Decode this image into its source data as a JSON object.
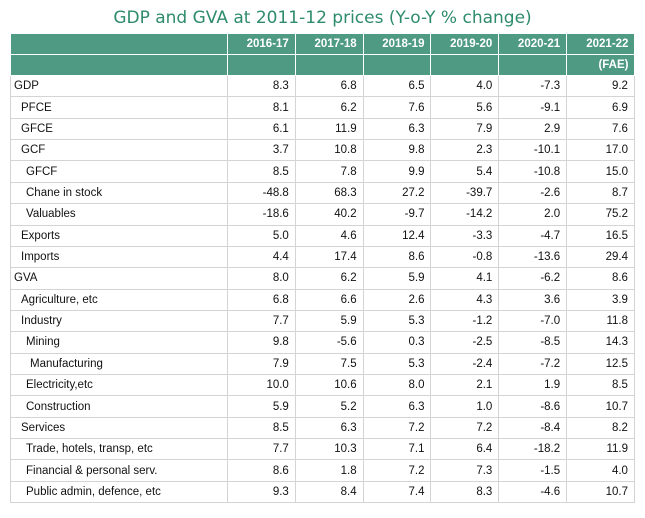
{
  "title": "GDP and GVA at 2011-12 prices (Y-o-Y % change)",
  "columns": [
    "2016-17",
    "2017-18",
    "2018-19",
    "2019-20",
    "2020-21",
    "2021-22"
  ],
  "subheader": [
    "",
    "",
    "",
    "",
    "",
    "(FAE)"
  ],
  "rows": [
    {
      "label": "GDP",
      "indent": 0,
      "values": [
        "8.3",
        "6.8",
        "6.5",
        "4.0",
        "-7.3",
        "9.2"
      ]
    },
    {
      "label": "PFCE",
      "indent": 1,
      "values": [
        "8.1",
        "6.2",
        "7.6",
        "5.6",
        "-9.1",
        "6.9"
      ]
    },
    {
      "label": "GFCE",
      "indent": 1,
      "values": [
        "6.1",
        "11.9",
        "6.3",
        "7.9",
        "2.9",
        "7.6"
      ]
    },
    {
      "label": "GCF",
      "indent": 1,
      "values": [
        "3.7",
        "10.8",
        "9.8",
        "2.3",
        "-10.1",
        "17.0"
      ]
    },
    {
      "label": "GFCF",
      "indent": 2,
      "values": [
        "8.5",
        "7.8",
        "9.9",
        "5.4",
        "-10.8",
        "15.0"
      ]
    },
    {
      "label": "Chane in stock",
      "indent": 2,
      "values": [
        "-48.8",
        "68.3",
        "27.2",
        "-39.7",
        "-2.6",
        "8.7"
      ]
    },
    {
      "label": "Valuables",
      "indent": 2,
      "values": [
        "-18.6",
        "40.2",
        "-9.7",
        "-14.2",
        "2.0",
        "75.2"
      ]
    },
    {
      "label": "Exports",
      "indent": 1,
      "values": [
        "5.0",
        "4.6",
        "12.4",
        "-3.3",
        "-4.7",
        "16.5"
      ]
    },
    {
      "label": "Imports",
      "indent": 1,
      "values": [
        "4.4",
        "17.4",
        "8.6",
        "-0.8",
        "-13.6",
        "29.4"
      ]
    },
    {
      "label": "GVA",
      "indent": 0,
      "values": [
        "8.0",
        "6.2",
        "5.9",
        "4.1",
        "-6.2",
        "8.6"
      ]
    },
    {
      "label": "Agriculture, etc",
      "indent": 1,
      "values": [
        "6.8",
        "6.6",
        "2.6",
        "4.3",
        "3.6",
        "3.9"
      ]
    },
    {
      "label": "Industry",
      "indent": 1,
      "values": [
        "7.7",
        "5.9",
        "5.3",
        "-1.2",
        "-7.0",
        "11.8"
      ]
    },
    {
      "label": "Mining",
      "indent": 2,
      "values": [
        "9.8",
        "-5.6",
        "0.3",
        "-2.5",
        "-8.5",
        "14.3"
      ]
    },
    {
      "label": "Manufacturing",
      "indent": 3,
      "values": [
        "7.9",
        "7.5",
        "5.3",
        "-2.4",
        "-7.2",
        "12.5"
      ]
    },
    {
      "label": "Electricity,etc",
      "indent": 2,
      "values": [
        "10.0",
        "10.6",
        "8.0",
        "2.1",
        "1.9",
        "8.5"
      ]
    },
    {
      "label": "Construction",
      "indent": 2,
      "values": [
        "5.9",
        "5.2",
        "6.3",
        "1.0",
        "-8.6",
        "10.7"
      ]
    },
    {
      "label": "Services",
      "indent": 1,
      "values": [
        "8.5",
        "6.3",
        "7.2",
        "7.2",
        "-8.4",
        "8.2"
      ]
    },
    {
      "label": "Trade, hotels, transp, etc",
      "indent": 2,
      "values": [
        "7.7",
        "10.3",
        "7.1",
        "6.4",
        "-18.2",
        "11.9"
      ]
    },
    {
      "label": "Financial & personal serv.",
      "indent": 2,
      "values": [
        "8.6",
        "1.8",
        "7.2",
        "7.3",
        "-1.5",
        "4.0"
      ]
    },
    {
      "label": "Public admin, defence, etc",
      "indent": 2,
      "values": [
        "9.3",
        "8.4",
        "7.4",
        "8.3",
        "-4.6",
        "10.7"
      ]
    }
  ],
  "colors": {
    "header_bg": "#4f9a83",
    "title": "#2e8b6c",
    "grid": "#d4d4d4"
  }
}
